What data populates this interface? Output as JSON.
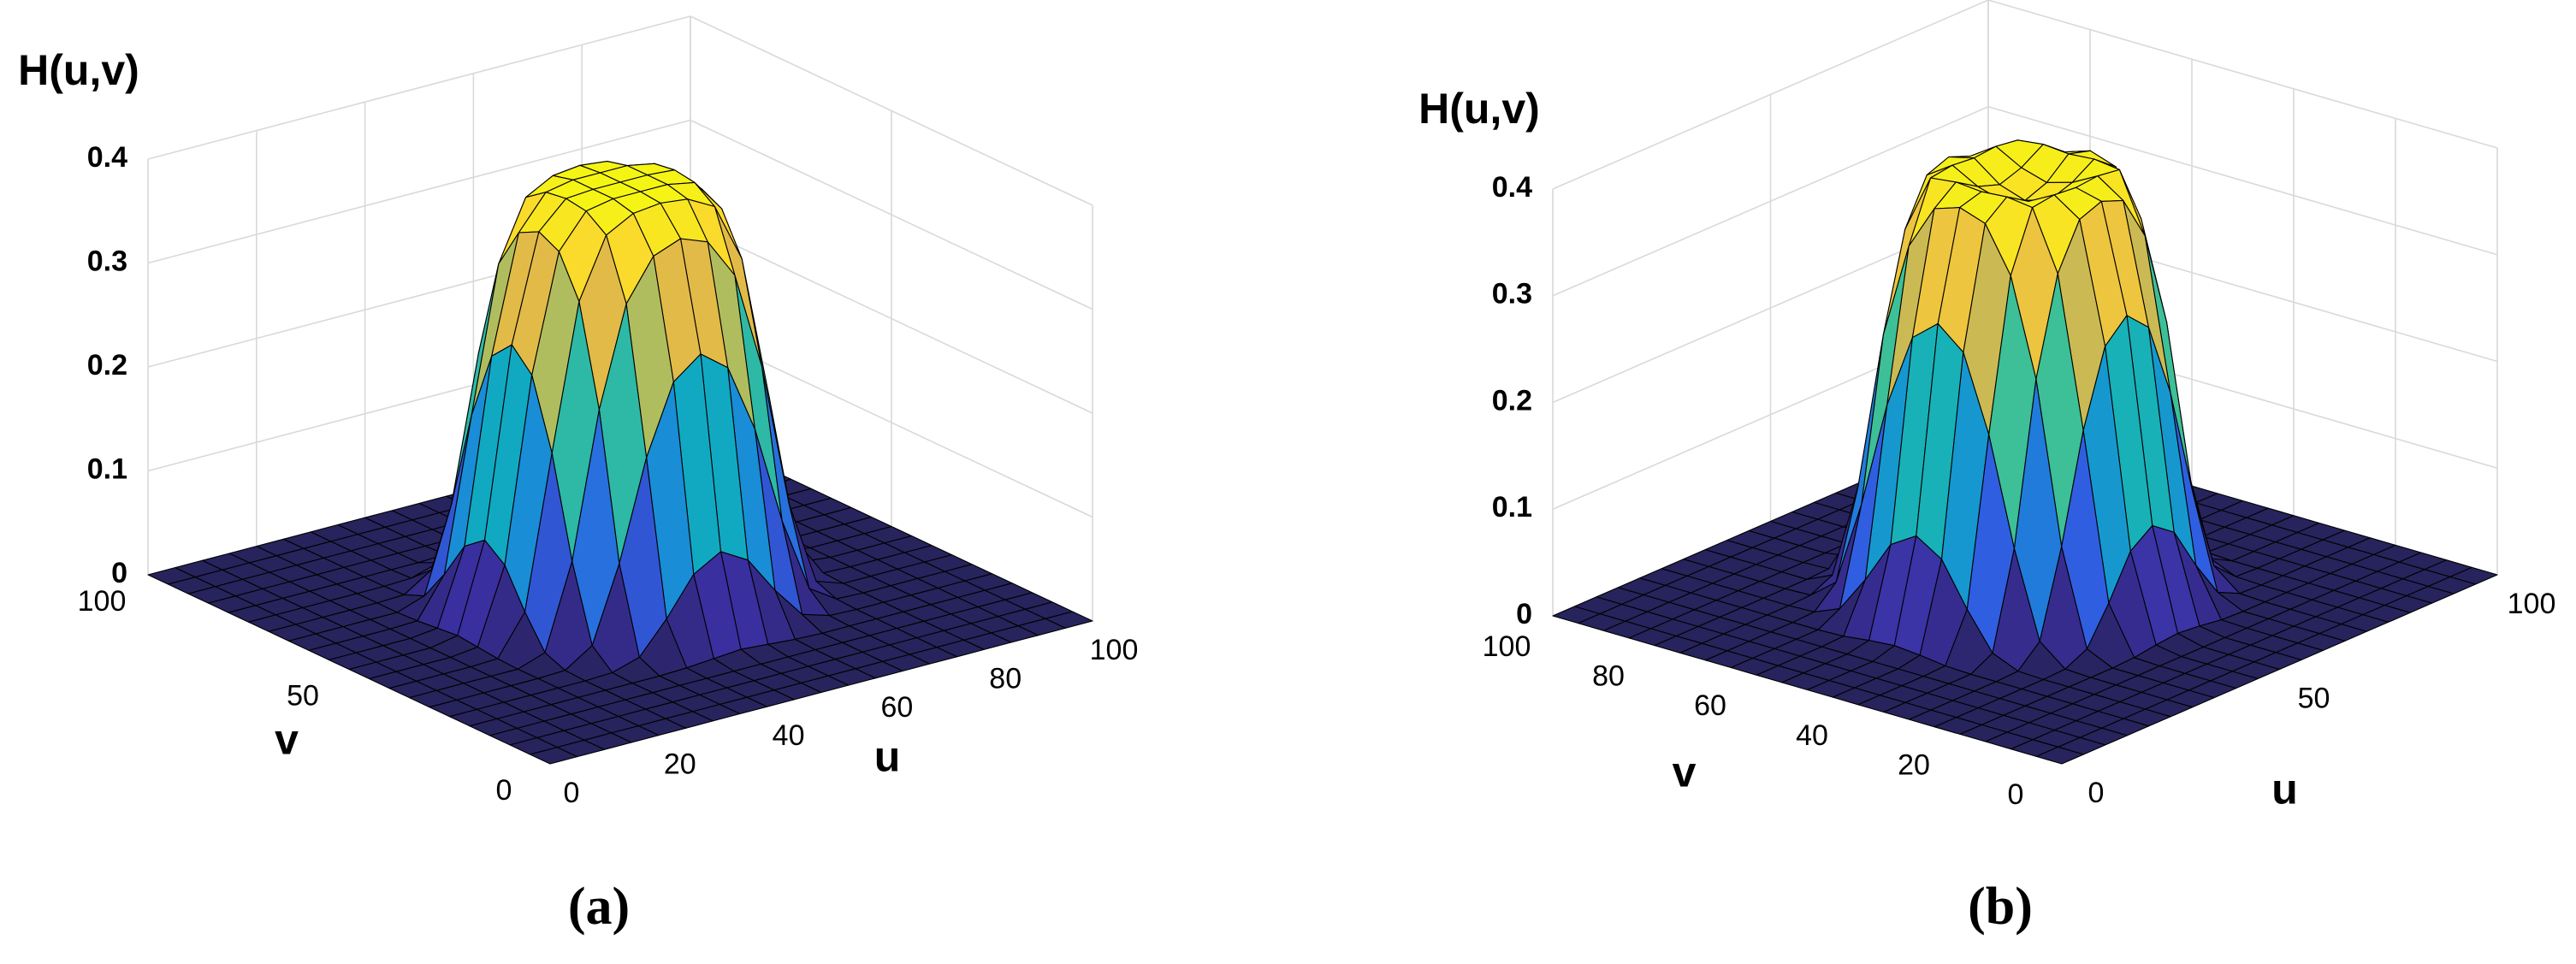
{
  "chart_data": [
    {
      "type": "surface",
      "caption": "(a)",
      "xlabel": "u",
      "ylabel": "v",
      "zlabel": "H(u,v)",
      "x": [
        0,
        5,
        10,
        15,
        20,
        25,
        30,
        35,
        40,
        45,
        50,
        55,
        60,
        65,
        70,
        75,
        80,
        85,
        90,
        95,
        100
      ],
      "y": [
        0,
        5,
        10,
        15,
        20,
        25,
        30,
        35,
        40,
        45,
        50,
        55,
        60,
        65,
        70,
        75,
        80,
        85,
        90,
        95,
        100
      ],
      "z": [
        [
          0,
          0,
          0,
          0,
          0,
          0,
          0,
          0,
          0,
          0,
          0,
          0,
          0,
          0,
          0,
          0,
          0,
          0,
          0,
          0,
          0
        ],
        [
          0,
          0,
          0,
          0,
          0,
          0,
          0,
          0,
          0,
          0,
          0,
          0,
          0,
          0,
          0,
          0,
          0,
          0,
          0,
          0,
          0
        ],
        [
          0,
          0,
          0,
          0,
          0,
          0,
          0,
          0,
          0,
          0,
          0,
          0,
          0,
          0,
          0,
          0,
          0,
          0,
          0,
          0,
          0
        ],
        [
          0,
          0,
          0,
          0,
          0,
          0,
          0,
          0,
          0,
          0,
          0,
          0,
          0,
          0,
          0,
          0,
          0,
          0,
          0,
          0,
          0
        ],
        [
          0,
          0,
          0,
          0,
          0,
          0,
          0,
          0,
          0.001,
          0.003,
          0.005,
          0.003,
          0.001,
          0,
          0,
          0,
          0,
          0,
          0,
          0,
          0
        ],
        [
          0,
          0,
          0,
          0,
          0,
          0,
          0.001,
          0.009,
          0.039,
          0.075,
          0.09,
          0.075,
          0.039,
          0.009,
          0.001,
          0,
          0,
          0,
          0,
          0,
          0
        ],
        [
          0,
          0,
          0,
          0,
          0,
          0.001,
          0.018,
          0.09,
          0.185,
          0.251,
          0.271,
          0.251,
          0.185,
          0.09,
          0.018,
          0.001,
          0,
          0,
          0,
          0,
          0
        ],
        [
          0,
          0,
          0,
          0,
          0,
          0.009,
          0.09,
          0.229,
          0.324,
          0.363,
          0.373,
          0.363,
          0.324,
          0.229,
          0.09,
          0.009,
          0,
          0,
          0,
          0,
          0
        ],
        [
          0,
          0,
          0,
          0,
          0.001,
          0.039,
          0.185,
          0.324,
          0.381,
          0.395,
          0.398,
          0.395,
          0.381,
          0.324,
          0.185,
          0.039,
          0.001,
          0,
          0,
          0,
          0
        ],
        [
          0,
          0,
          0,
          0,
          0.003,
          0.075,
          0.251,
          0.363,
          0.395,
          0.4,
          0.4,
          0.4,
          0.395,
          0.363,
          0.251,
          0.075,
          0.003,
          0,
          0,
          0,
          0
        ],
        [
          0,
          0,
          0,
          0,
          0.005,
          0.09,
          0.271,
          0.373,
          0.398,
          0.4,
          0.4,
          0.4,
          0.398,
          0.373,
          0.271,
          0.09,
          0.005,
          0,
          0,
          0,
          0
        ],
        [
          0,
          0,
          0,
          0,
          0.003,
          0.075,
          0.251,
          0.363,
          0.395,
          0.4,
          0.4,
          0.4,
          0.395,
          0.363,
          0.251,
          0.075,
          0.003,
          0,
          0,
          0,
          0
        ],
        [
          0,
          0,
          0,
          0,
          0.001,
          0.039,
          0.185,
          0.324,
          0.381,
          0.395,
          0.398,
          0.395,
          0.381,
          0.324,
          0.185,
          0.039,
          0.001,
          0,
          0,
          0,
          0
        ],
        [
          0,
          0,
          0,
          0,
          0,
          0.009,
          0.09,
          0.229,
          0.324,
          0.363,
          0.373,
          0.363,
          0.324,
          0.229,
          0.09,
          0.009,
          0,
          0,
          0,
          0,
          0
        ],
        [
          0,
          0,
          0,
          0,
          0,
          0.001,
          0.018,
          0.09,
          0.185,
          0.251,
          0.271,
          0.251,
          0.185,
          0.09,
          0.018,
          0.001,
          0,
          0,
          0,
          0,
          0
        ],
        [
          0,
          0,
          0,
          0,
          0,
          0,
          0.001,
          0.009,
          0.039,
          0.075,
          0.09,
          0.075,
          0.039,
          0.009,
          0.001,
          0,
          0,
          0,
          0,
          0,
          0
        ],
        [
          0,
          0,
          0,
          0,
          0,
          0,
          0,
          0,
          0.001,
          0.003,
          0.005,
          0.003,
          0.001,
          0,
          0,
          0,
          0,
          0,
          0,
          0,
          0
        ],
        [
          0,
          0,
          0,
          0,
          0,
          0,
          0,
          0,
          0,
          0,
          0,
          0,
          0,
          0,
          0,
          0,
          0,
          0,
          0,
          0,
          0
        ],
        [
          0,
          0,
          0,
          0,
          0,
          0,
          0,
          0,
          0,
          0,
          0,
          0,
          0,
          0,
          0,
          0,
          0,
          0,
          0,
          0,
          0
        ],
        [
          0,
          0,
          0,
          0,
          0,
          0,
          0,
          0,
          0,
          0,
          0,
          0,
          0,
          0,
          0,
          0,
          0,
          0,
          0,
          0,
          0
        ],
        [
          0,
          0,
          0,
          0,
          0,
          0,
          0,
          0,
          0,
          0,
          0,
          0,
          0,
          0,
          0,
          0,
          0,
          0,
          0,
          0,
          0
        ]
      ],
      "xlim": [
        0,
        100
      ],
      "ylim": [
        0,
        100
      ],
      "zlim": [
        0,
        0.4
      ],
      "xticks": [
        0,
        20,
        40,
        60,
        80,
        100
      ],
      "yticks": [
        0,
        50,
        100
      ],
      "zticks": [
        0,
        0.1,
        0.2,
        0.3,
        0.4
      ],
      "grid": true,
      "colormap": [
        "#27235c",
        "#3b2fa0",
        "#2f5fe0",
        "#1a8ad8",
        "#10aebf",
        "#3cbf97",
        "#9ac067",
        "#e0b84a",
        "#fcd232",
        "#f5f514"
      ]
    },
    {
      "type": "surface",
      "caption": "(b)",
      "xlabel": "u",
      "ylabel": "v",
      "zlabel": "H(u,v)",
      "x": [
        0,
        5,
        10,
        15,
        20,
        25,
        30,
        35,
        40,
        45,
        50,
        55,
        60,
        65,
        70,
        75,
        80,
        85,
        90,
        95,
        100
      ],
      "y": [
        0,
        5,
        10,
        15,
        20,
        25,
        30,
        35,
        40,
        45,
        50,
        55,
        60,
        65,
        70,
        75,
        80,
        85,
        90,
        95,
        100
      ],
      "z": [
        [
          0,
          0,
          0,
          0,
          0,
          0,
          0,
          0,
          0,
          0,
          0,
          0,
          0,
          0,
          0,
          0,
          0,
          0,
          0,
          0,
          0
        ],
        [
          0,
          0,
          0,
          0,
          0,
          0,
          0,
          0,
          0,
          0,
          0,
          0,
          0,
          0,
          0,
          0,
          0,
          0,
          0,
          0,
          0
        ],
        [
          0,
          0,
          0,
          0,
          0,
          0,
          0,
          0,
          0,
          0,
          0,
          0,
          0,
          0,
          0,
          0,
          0,
          0,
          0,
          0,
          0
        ],
        [
          0,
          0,
          0,
          0,
          0,
          0,
          0,
          0,
          0,
          0,
          0,
          0,
          0,
          0,
          0,
          0,
          0,
          0,
          0,
          0,
          0
        ],
        [
          0,
          0,
          0,
          0,
          0,
          0,
          0,
          0,
          0.001,
          0.004,
          0.006,
          0.004,
          0.001,
          0,
          0,
          0,
          0,
          0,
          0,
          0,
          0
        ],
        [
          0,
          0,
          0,
          0,
          0,
          0,
          0.001,
          0.011,
          0.045,
          0.085,
          0.1,
          0.085,
          0.045,
          0.011,
          0.001,
          0,
          0,
          0,
          0,
          0,
          0
        ],
        [
          0,
          0,
          0,
          0,
          0,
          0.001,
          0.02,
          0.1,
          0.2,
          0.27,
          0.29,
          0.27,
          0.2,
          0.1,
          0.02,
          0.001,
          0,
          0,
          0,
          0,
          0
        ],
        [
          0,
          0,
          0,
          0,
          0,
          0.011,
          0.1,
          0.25,
          0.34,
          0.382,
          0.39,
          0.382,
          0.34,
          0.25,
          0.1,
          0.011,
          0,
          0,
          0,
          0,
          0
        ],
        [
          0,
          0,
          0,
          0,
          0.001,
          0.045,
          0.2,
          0.34,
          0.395,
          0.398,
          0.396,
          0.398,
          0.395,
          0.34,
          0.2,
          0.045,
          0.001,
          0,
          0,
          0,
          0
        ],
        [
          0,
          0,
          0,
          0,
          0.004,
          0.085,
          0.27,
          0.382,
          0.398,
          0.385,
          0.378,
          0.385,
          0.398,
          0.382,
          0.27,
          0.085,
          0.004,
          0,
          0,
          0,
          0
        ],
        [
          0,
          0,
          0,
          0,
          0.006,
          0.1,
          0.29,
          0.39,
          0.396,
          0.378,
          0.37,
          0.378,
          0.396,
          0.39,
          0.29,
          0.1,
          0.006,
          0,
          0,
          0,
          0
        ],
        [
          0,
          0,
          0,
          0,
          0.004,
          0.085,
          0.27,
          0.382,
          0.398,
          0.385,
          0.378,
          0.385,
          0.398,
          0.382,
          0.27,
          0.085,
          0.004,
          0,
          0,
          0,
          0
        ],
        [
          0,
          0,
          0,
          0,
          0.001,
          0.045,
          0.2,
          0.34,
          0.395,
          0.398,
          0.396,
          0.398,
          0.395,
          0.34,
          0.2,
          0.045,
          0.001,
          0,
          0,
          0,
          0
        ],
        [
          0,
          0,
          0,
          0,
          0,
          0.011,
          0.1,
          0.25,
          0.34,
          0.382,
          0.39,
          0.382,
          0.34,
          0.25,
          0.1,
          0.011,
          0,
          0,
          0,
          0,
          0
        ],
        [
          0,
          0,
          0,
          0,
          0,
          0.001,
          0.02,
          0.1,
          0.2,
          0.27,
          0.29,
          0.27,
          0.2,
          0.1,
          0.02,
          0.001,
          0,
          0,
          0,
          0,
          0
        ],
        [
          0,
          0,
          0,
          0,
          0,
          0,
          0.001,
          0.011,
          0.045,
          0.085,
          0.1,
          0.085,
          0.045,
          0.011,
          0.001,
          0,
          0,
          0,
          0,
          0,
          0
        ],
        [
          0,
          0,
          0,
          0,
          0,
          0,
          0,
          0,
          0.001,
          0.004,
          0.006,
          0.004,
          0.001,
          0,
          0,
          0,
          0,
          0,
          0,
          0,
          0
        ],
        [
          0,
          0,
          0,
          0,
          0,
          0,
          0,
          0,
          0,
          0,
          0,
          0,
          0,
          0,
          0,
          0,
          0,
          0,
          0,
          0,
          0
        ],
        [
          0,
          0,
          0,
          0,
          0,
          0,
          0,
          0,
          0,
          0,
          0,
          0,
          0,
          0,
          0,
          0,
          0,
          0,
          0,
          0,
          0
        ],
        [
          0,
          0,
          0,
          0,
          0,
          0,
          0,
          0,
          0,
          0,
          0,
          0,
          0,
          0,
          0,
          0,
          0,
          0,
          0,
          0,
          0
        ],
        [
          0,
          0,
          0,
          0,
          0,
          0,
          0,
          0,
          0,
          0,
          0,
          0,
          0,
          0,
          0,
          0,
          0,
          0,
          0,
          0,
          0
        ]
      ],
      "xlim": [
        0,
        100
      ],
      "ylim": [
        0,
        100
      ],
      "zlim": [
        0,
        0.4
      ],
      "xticks": [
        0,
        50,
        100
      ],
      "yticks": [
        0,
        20,
        40,
        60,
        80,
        100
      ],
      "zticks": [
        0,
        0.1,
        0.2,
        0.3,
        0.4
      ],
      "grid": true,
      "colormap": [
        "#27235c",
        "#3b2fa0",
        "#2f5fe0",
        "#1a8ad8",
        "#10aebf",
        "#3cbf97",
        "#9ac067",
        "#e0b84a",
        "#fcd232",
        "#f5f514"
      ]
    }
  ]
}
